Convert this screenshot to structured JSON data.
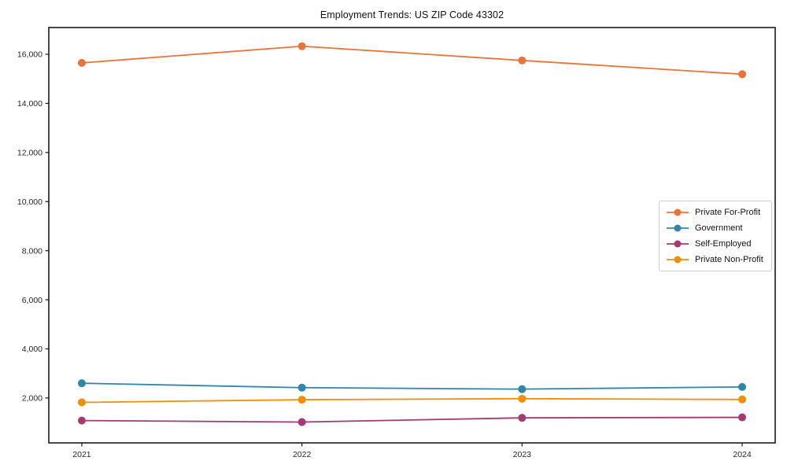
{
  "chart_data": {
    "type": "line",
    "title": "Employment Trends: US ZIP Code 43302",
    "xlabel": "",
    "ylabel": "",
    "categories": [
      "2021",
      "2022",
      "2023",
      "2024"
    ],
    "x": [
      2021,
      2022,
      2023,
      2024
    ],
    "series": [
      {
        "name": "Private For-Profit",
        "color": "#E8743B",
        "values": [
          15650,
          16330,
          15750,
          15190
        ]
      },
      {
        "name": "Government",
        "color": "#2E86AB",
        "values": [
          2600,
          2420,
          2360,
          2450
        ]
      },
      {
        "name": "Self-Employed",
        "color": "#A23B72",
        "values": [
          1080,
          1020,
          1190,
          1210
        ]
      },
      {
        "name": "Private Non-Profit",
        "color": "#F18F01",
        "values": [
          1820,
          1930,
          1970,
          1940
        ]
      }
    ],
    "xlim": [
      2020.85,
      2024.15
    ],
    "ylim": [
      170,
      17090
    ],
    "yticks": [
      2000,
      4000,
      6000,
      8000,
      10000,
      12000,
      14000,
      16000
    ],
    "ytick_labels": [
      "2,000",
      "4,000",
      "6,000",
      "8,000",
      "10,000",
      "12,000",
      "14,000",
      "16,000"
    ],
    "grid": false,
    "legend_position": "center-right",
    "axis_color": "#1a1a1a",
    "tick_label_color": "#262626",
    "background_color": "#ffffff"
  }
}
